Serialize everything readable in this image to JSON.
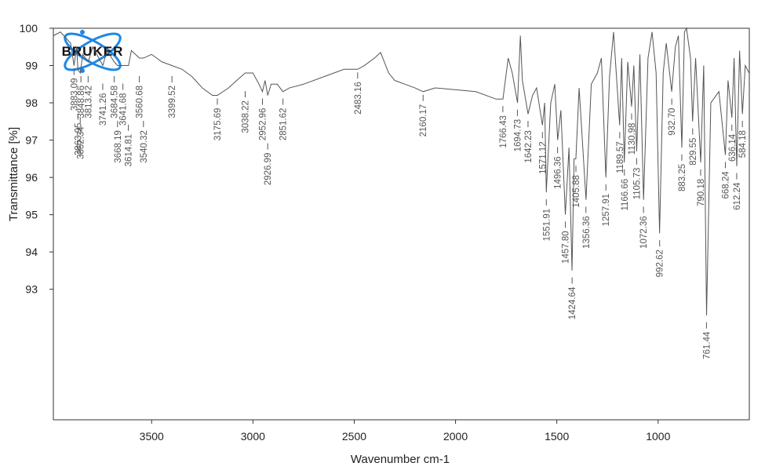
{
  "logo": "BRUKER",
  "chart_data": {
    "type": "line",
    "x_label": "Wavenumber cm-1",
    "y_label": "Transmittance [%]",
    "color": "#555555",
    "xlim": [
      3985,
      550
    ],
    "ylim": [
      89.5,
      100
    ],
    "xticks": [
      3500,
      3000,
      2500,
      2000,
      1500,
      1000
    ],
    "yticks": [
      93,
      94,
      95,
      96,
      97,
      98,
      99,
      100
    ],
    "x": [
      3985,
      3950,
      3900,
      3883,
      3870,
      3864,
      3852,
      3840,
      3813,
      3790,
      3741,
      3720,
      3685,
      3668,
      3641,
      3614,
      3600,
      3560,
      3540,
      3500,
      3450,
      3400,
      3350,
      3300,
      3250,
      3200,
      3175,
      3120,
      3080,
      3038,
      3000,
      2970,
      2953,
      2940,
      2927,
      2910,
      2880,
      2852,
      2820,
      2750,
      2650,
      2550,
      2483,
      2450,
      2400,
      2370,
      2330,
      2300,
      2250,
      2200,
      2160,
      2100,
      2000,
      1900,
      1800,
      1766,
      1740,
      1720,
      1694,
      1680,
      1670,
      1642,
      1620,
      1600,
      1571,
      1560,
      1552,
      1530,
      1510,
      1496,
      1480,
      1458,
      1440,
      1425,
      1415,
      1406,
      1390,
      1356,
      1330,
      1300,
      1280,
      1258,
      1240,
      1220,
      1190,
      1180,
      1167,
      1150,
      1131,
      1120,
      1106,
      1090,
      1072,
      1050,
      1030,
      1010,
      993,
      975,
      960,
      933,
      915,
      900,
      883,
      870,
      860,
      840,
      830,
      815,
      790,
      775,
      761,
      740,
      700,
      668,
      655,
      636,
      625,
      612,
      598,
      584,
      570,
      551
    ],
    "values": [
      99.8,
      99.9,
      99.6,
      99.0,
      99.5,
      98.9,
      98.8,
      99.3,
      99.1,
      99.5,
      99.0,
      99.4,
      99.1,
      99.0,
      99.0,
      99.0,
      99.4,
      99.2,
      99.2,
      99.3,
      99.1,
      99.0,
      98.9,
      98.7,
      98.4,
      98.2,
      98.2,
      98.4,
      98.6,
      98.8,
      98.8,
      98.5,
      98.3,
      98.6,
      98.2,
      98.5,
      98.5,
      98.3,
      98.4,
      98.5,
      98.7,
      98.9,
      98.9,
      99.0,
      99.2,
      99.35,
      98.8,
      98.6,
      98.5,
      98.4,
      98.3,
      98.4,
      98.35,
      98.3,
      98.1,
      98.1,
      99.2,
      98.8,
      98.0,
      99.8,
      98.6,
      97.7,
      98.2,
      98.4,
      97.4,
      98.0,
      95.6,
      98.0,
      98.5,
      97.0,
      97.8,
      95.0,
      96.8,
      93.5,
      96.5,
      96.5,
      98.4,
      95.4,
      98.5,
      98.8,
      99.2,
      96.0,
      98.7,
      99.9,
      97.4,
      99.2,
      96.4,
      99.1,
      97.9,
      99.0,
      96.7,
      99.3,
      95.4,
      99.2,
      99.9,
      98.8,
      94.5,
      98.8,
      99.6,
      98.3,
      99.5,
      99.8,
      96.8,
      99.9,
      100.0,
      99.2,
      97.5,
      99.2,
      96.4,
      99.0,
      92.3,
      98.0,
      98.3,
      96.6,
      98.6,
      97.6,
      99.2,
      96.3,
      99.4,
      97.7,
      99.0,
      98.8
    ],
    "peaks": [
      {
        "x": 3883.09,
        "label": "3883.09",
        "y": 99.0
      },
      {
        "x": 3863.95,
        "label": "3863.95",
        "y": 97.8
      },
      {
        "x": 3852.34,
        "label": "3852.34",
        "y": 97.7
      },
      {
        "x": 3848.86,
        "label": "3848.86",
        "y": 98.8
      },
      {
        "x": 3813.42,
        "label": "3813.42",
        "y": 98.8
      },
      {
        "x": 3741.26,
        "label": "3741.26",
        "y": 98.6
      },
      {
        "x": 3684.58,
        "label": "3684.58",
        "y": 98.8
      },
      {
        "x": 3668.19,
        "label": "3668.19",
        "y": 97.6
      },
      {
        "x": 3641.68,
        "label": "3641.68",
        "y": 98.6
      },
      {
        "x": 3614.81,
        "label": "3614.81",
        "y": 97.5
      },
      {
        "x": 3560.68,
        "label": "3560.68",
        "y": 98.8
      },
      {
        "x": 3540.32,
        "label": "3540.32",
        "y": 97.6
      },
      {
        "x": 3399.52,
        "label": "3399.52",
        "y": 98.8
      },
      {
        "x": 3175.69,
        "label": "3175.69",
        "y": 98.2
      },
      {
        "x": 3038.22,
        "label": "3038.22",
        "y": 98.4
      },
      {
        "x": 2952.96,
        "label": "2952.96",
        "y": 98.2
      },
      {
        "x": 2926.99,
        "label": "2926.99",
        "y": 97.0
      },
      {
        "x": 2851.62,
        "label": "2851.62",
        "y": 98.2
      },
      {
        "x": 2483.16,
        "label": "2483.16",
        "y": 98.9
      },
      {
        "x": 2160.17,
        "label": "2160.17",
        "y": 98.3
      },
      {
        "x": 1766.43,
        "label": "1766.43",
        "y": 98.0
      },
      {
        "x": 1694.73,
        "label": "1694.73",
        "y": 97.9
      },
      {
        "x": 1642.23,
        "label": "1642.23",
        "y": 97.6
      },
      {
        "x": 1571.12,
        "label": "1571.12",
        "y": 97.3
      },
      {
        "x": 1551.91,
        "label": "1551.91",
        "y": 95.5
      },
      {
        "x": 1496.36,
        "label": "1496.36",
        "y": 96.9
      },
      {
        "x": 1457.8,
        "label": "1457.80",
        "y": 94.9
      },
      {
        "x": 1424.64,
        "label": "1424.64",
        "y": 93.4
      },
      {
        "x": 1405.88,
        "label": "1405.88",
        "y": 96.4
      },
      {
        "x": 1356.36,
        "label": "1356.36",
        "y": 95.3
      },
      {
        "x": 1257.91,
        "label": "1257.91",
        "y": 95.9
      },
      {
        "x": 1189.57,
        "label": "1189.57",
        "y": 97.3
      },
      {
        "x": 1166.66,
        "label": "1166.66",
        "y": 96.3
      },
      {
        "x": 1130.98,
        "label": "1130.98",
        "y": 97.8
      },
      {
        "x": 1105.73,
        "label": "1105.73",
        "y": 96.6
      },
      {
        "x": 1072.36,
        "label": "1072.36",
        "y": 95.3
      },
      {
        "x": 992.62,
        "label": "992.62",
        "y": 94.4
      },
      {
        "x": 932.7,
        "label": "932.70",
        "y": 98.2
      },
      {
        "x": 883.25,
        "label": "883.25",
        "y": 96.7
      },
      {
        "x": 829.55,
        "label": "829.55",
        "y": 97.4
      },
      {
        "x": 790.18,
        "label": "790.18",
        "y": 96.3
      },
      {
        "x": 761.44,
        "label": "761.44",
        "y": 92.2
      },
      {
        "x": 668.24,
        "label": "668.24",
        "y": 96.5
      },
      {
        "x": 636.14,
        "label": "636.14",
        "y": 97.5
      },
      {
        "x": 612.24,
        "label": "612.24",
        "y": 96.2
      },
      {
        "x": 584.18,
        "label": "584.18",
        "y": 97.6
      }
    ]
  }
}
